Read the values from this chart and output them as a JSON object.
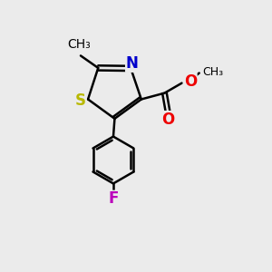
{
  "bg_color": "#ebebeb",
  "bond_color": "#000000",
  "line_width": 1.8,
  "atom_colors": {
    "S": "#b8b800",
    "N": "#0000cc",
    "O": "#ee0000",
    "F": "#bb00bb",
    "C": "#000000"
  },
  "font_size": 11,
  "font_size_methyl": 10
}
